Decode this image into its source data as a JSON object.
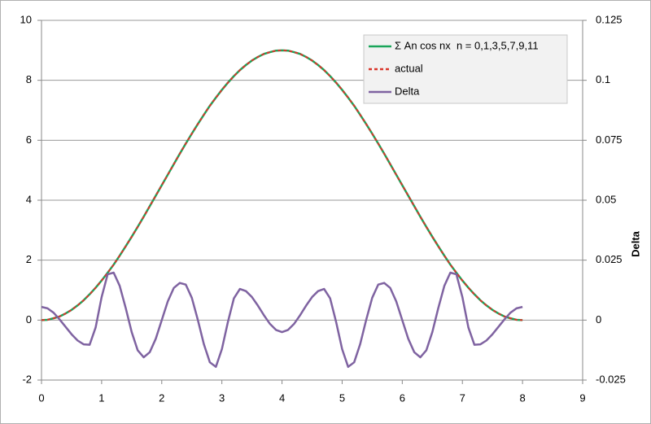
{
  "chart_data": {
    "type": "line",
    "x": [
      0,
      0.1,
      0.2,
      0.3,
      0.4,
      0.5,
      0.6,
      0.7,
      0.8,
      0.9,
      1,
      1.1,
      1.2,
      1.3,
      1.4,
      1.5,
      1.6,
      1.7,
      1.8,
      1.9,
      2,
      2.1,
      2.2,
      2.3,
      2.4,
      2.5,
      2.6,
      2.7,
      2.8,
      2.9,
      3,
      3.1,
      3.2,
      3.3,
      3.4,
      3.5,
      3.6,
      3.7,
      3.8,
      3.9,
      4,
      4.1,
      4.2,
      4.3,
      4.4,
      4.5,
      4.6,
      4.7,
      4.8,
      4.9,
      5,
      5.1,
      5.2,
      5.3,
      5.4,
      5.5,
      5.6,
      5.7,
      5.8,
      5.9,
      6,
      6.1,
      6.2,
      6.3,
      6.4,
      6.5,
      6.6,
      6.7,
      6.8,
      6.9,
      7,
      7.1,
      7.2,
      7.3,
      7.4,
      7.5,
      7.6,
      7.7,
      7.8,
      7.9,
      8
    ],
    "series": [
      {
        "name": "Σ An cos nx  n = 0,1,3,5,7,9,11",
        "color": "#1aa55a",
        "dash": false,
        "values": [
          0,
          0.01,
          0.06,
          0.12,
          0.22,
          0.34,
          0.49,
          0.66,
          0.86,
          1.08,
          1.32,
          1.58,
          1.85,
          2.15,
          2.46,
          2.78,
          3.11,
          3.45,
          3.8,
          4.15,
          4.5,
          4.85,
          5.2,
          5.55,
          5.89,
          6.22,
          6.54,
          6.85,
          7.15,
          7.42,
          7.68,
          7.92,
          8.14,
          8.34,
          8.51,
          8.66,
          8.78,
          8.88,
          8.94,
          8.99,
          9,
          8.99,
          8.94,
          8.88,
          8.78,
          8.66,
          8.51,
          8.34,
          8.14,
          7.92,
          7.68,
          7.42,
          7.15,
          6.85,
          6.54,
          6.22,
          5.89,
          5.55,
          5.2,
          4.85,
          4.5,
          4.15,
          3.8,
          3.45,
          3.11,
          2.78,
          2.46,
          2.15,
          1.85,
          1.58,
          1.32,
          1.08,
          0.86,
          0.66,
          0.49,
          0.34,
          0.22,
          0.12,
          0.06,
          0.01,
          0
        ]
      },
      {
        "name": "actual",
        "color": "#d9362b",
        "dash": true,
        "values": [
          0,
          0.01,
          0.06,
          0.12,
          0.22,
          0.34,
          0.49,
          0.66,
          0.86,
          1.08,
          1.32,
          1.58,
          1.85,
          2.15,
          2.46,
          2.78,
          3.11,
          3.45,
          3.8,
          4.15,
          4.5,
          4.85,
          5.2,
          5.55,
          5.89,
          6.22,
          6.54,
          6.85,
          7.15,
          7.42,
          7.68,
          7.92,
          8.14,
          8.34,
          8.51,
          8.66,
          8.78,
          8.88,
          8.94,
          8.99,
          9,
          8.99,
          8.94,
          8.88,
          8.78,
          8.66,
          8.51,
          8.34,
          8.14,
          7.92,
          7.68,
          7.42,
          7.15,
          6.85,
          6.54,
          6.22,
          5.89,
          5.55,
          5.2,
          4.85,
          4.5,
          4.15,
          3.8,
          3.45,
          3.11,
          2.78,
          2.46,
          2.15,
          1.85,
          1.58,
          1.32,
          1.08,
          0.86,
          0.66,
          0.49,
          0.34,
          0.22,
          0.12,
          0.06,
          0.01,
          0
        ]
      },
      {
        "name": "Delta",
        "color": "#7f63a1",
        "dash": false,
        "axis": "y2",
        "values": [
          0.0055,
          0.0049,
          0.0031,
          0.0003,
          -0.0028,
          -0.0059,
          -0.0085,
          -0.0101,
          -0.0103,
          -0.0031,
          0.0096,
          0.0191,
          0.0198,
          0.0143,
          0.0051,
          -0.005,
          -0.0126,
          -0.0155,
          -0.0134,
          -0.0078,
          0,
          0.0078,
          0.0134,
          0.0155,
          0.0148,
          0.0093,
          0.0001,
          -0.01,
          -0.0176,
          -0.0195,
          -0.0121,
          -0.0008,
          0.0091,
          0.013,
          0.0121,
          0.0096,
          0.006,
          0.002,
          -0.0016,
          -0.0041,
          -0.005,
          -0.0041,
          -0.0016,
          0.002,
          0.006,
          0.0096,
          0.0121,
          0.013,
          0.0091,
          -0.0008,
          -0.0121,
          -0.0195,
          -0.0176,
          -0.01,
          0.0001,
          0.0093,
          0.0148,
          0.0155,
          0.0134,
          0.0078,
          0,
          -0.0078,
          -0.0134,
          -0.0155,
          -0.0126,
          -0.005,
          0.0051,
          0.0143,
          0.0198,
          0.0191,
          0.0096,
          -0.0031,
          -0.0103,
          -0.0101,
          -0.0085,
          -0.0059,
          -0.0028,
          0.0003,
          0.0031,
          0.0049,
          0.0055
        ]
      }
    ],
    "xlim": [
      0,
      9
    ],
    "xticks": [
      0,
      1,
      2,
      3,
      4,
      5,
      6,
      7,
      8,
      9
    ],
    "ylim": [
      -2,
      10
    ],
    "yticks": [
      -2,
      0,
      2,
      4,
      6,
      8,
      10
    ],
    "y2lim": [
      -0.025,
      0.125
    ],
    "y2ticks": [
      -0.025,
      0,
      0.025,
      0.05,
      0.075,
      0.1,
      0.125
    ],
    "y2_label": "Delta",
    "grid": true,
    "legend": "top-right"
  }
}
